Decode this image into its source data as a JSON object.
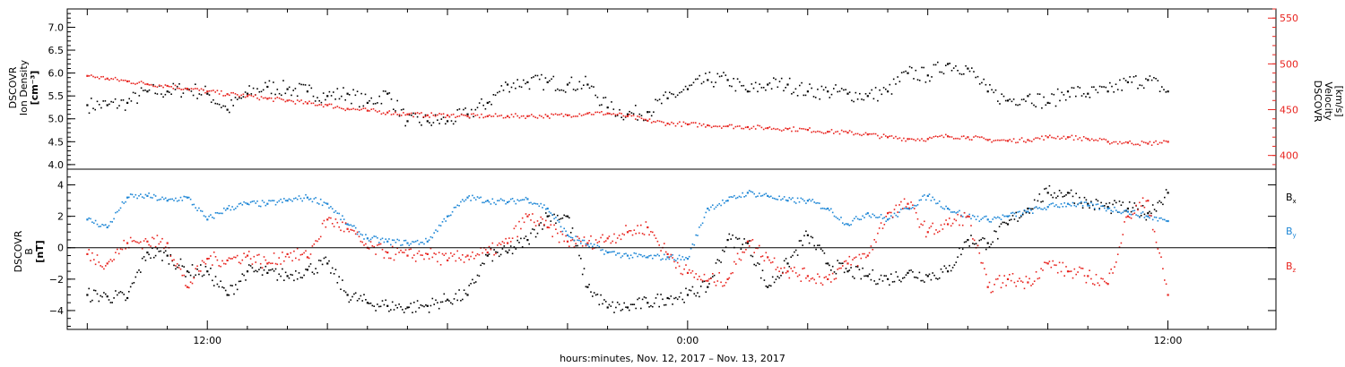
{
  "chart_data": [
    {
      "type": "scatter",
      "panel": "top",
      "ylabel_lines": [
        "DSCOVR",
        "Ion Density",
        "[cm⁻³]"
      ],
      "ylim": [
        3.9,
        7.4
      ],
      "yticks": [
        4.0,
        4.5,
        5.0,
        5.5,
        6.0,
        6.5,
        7.0
      ],
      "ytick_labels": [
        "4.0",
        "4.5",
        "5.0",
        "5.5",
        "6.0",
        "6.5",
        "7.0"
      ],
      "y2label_lines": [
        "DSCOVR",
        "Velocity",
        "[km/s]"
      ],
      "y2lim": [
        385,
        560
      ],
      "y2ticks": [
        400,
        450,
        500,
        550
      ],
      "y2tick_labels": [
        "400",
        "450",
        "500",
        "550"
      ],
      "color_left": "#000000",
      "color_right": "#e8241f",
      "series": [
        {
          "color": "#000000",
          "axis": "left",
          "x": [
            9.0,
            9.5,
            10.0,
            10.5,
            11.0,
            11.5,
            12.0,
            12.5,
            13.0,
            13.5,
            14.0,
            14.5,
            15.0,
            15.5,
            16.0,
            16.5,
            17.0,
            17.5,
            18.0,
            18.5,
            19.0,
            19.5,
            20.0,
            20.5,
            21.0,
            21.5,
            22.0,
            22.5,
            23.0,
            23.5,
            24.0,
            24.5,
            25.0,
            25.5,
            26.0,
            26.5,
            27.0,
            27.5,
            28.0,
            28.5,
            29.0,
            29.5,
            30.0,
            30.5,
            31.0,
            31.5,
            32.0,
            32.5,
            33.0,
            33.5,
            34.0,
            34.5,
            35.0,
            35.5,
            36.0
          ],
          "y": [
            5.3,
            5.3,
            5.35,
            5.6,
            5.6,
            5.65,
            5.55,
            5.2,
            5.55,
            5.7,
            5.65,
            5.6,
            5.5,
            5.55,
            5.35,
            5.55,
            4.95,
            4.95,
            4.95,
            5.1,
            5.35,
            5.75,
            5.8,
            5.8,
            5.75,
            5.75,
            5.25,
            5.1,
            5.15,
            5.45,
            5.65,
            5.85,
            5.85,
            5.6,
            5.75,
            5.75,
            5.6,
            5.6,
            5.55,
            5.5,
            5.6,
            6.0,
            5.95,
            6.2,
            6.1,
            5.6,
            5.4,
            5.5,
            5.35,
            5.6,
            5.55,
            5.6,
            5.8,
            5.85,
            5.6
          ]
        },
        {
          "color": "#e8241f",
          "axis": "right",
          "x": [
            9.0,
            9.5,
            10.0,
            10.5,
            11.0,
            11.5,
            12.0,
            12.5,
            13.0,
            13.5,
            14.0,
            14.5,
            15.0,
            15.5,
            16.0,
            16.5,
            17.0,
            17.5,
            18.0,
            18.5,
            19.0,
            19.5,
            20.0,
            20.5,
            21.0,
            21.5,
            22.0,
            22.5,
            23.0,
            23.5,
            24.0,
            24.5,
            25.0,
            25.5,
            26.0,
            26.5,
            27.0,
            27.5,
            28.0,
            28.5,
            29.0,
            29.5,
            30.0,
            30.5,
            31.0,
            31.5,
            32.0,
            32.5,
            33.0,
            33.5,
            34.0,
            34.5,
            35.0,
            35.5,
            36.0
          ],
          "y": [
            487,
            484,
            481,
            478,
            476,
            473,
            470,
            467,
            465,
            462,
            460,
            457,
            455,
            451,
            449,
            447,
            445,
            444,
            444,
            443,
            443,
            443,
            443,
            443,
            444,
            446,
            446,
            443,
            438,
            435,
            434,
            433,
            432,
            431,
            430,
            429,
            428,
            426,
            425,
            423,
            420,
            418,
            418,
            421,
            420,
            417,
            416,
            417,
            420,
            420,
            418,
            415,
            414,
            413,
            415
          ]
        }
      ]
    },
    {
      "type": "scatter",
      "panel": "bottom",
      "ylabel_lines": [
        "DSCOVR",
        "B",
        "[nT]"
      ],
      "ylim": [
        -5.2,
        5.0
      ],
      "yticks": [
        -4,
        -2,
        0,
        2,
        4
      ],
      "ytick_labels": [
        "−4",
        "−2",
        "0",
        "2",
        "4"
      ],
      "zero_line": true,
      "x": [
        9.0,
        9.5,
        10.0,
        10.5,
        11.0,
        11.5,
        12.0,
        12.5,
        13.0,
        13.5,
        14.0,
        14.5,
        15.0,
        15.5,
        16.0,
        16.5,
        17.0,
        17.5,
        18.0,
        18.5,
        19.0,
        19.5,
        20.0,
        20.5,
        21.0,
        21.5,
        22.0,
        22.5,
        23.0,
        23.5,
        24.0,
        24.5,
        25.0,
        25.5,
        26.0,
        26.5,
        27.0,
        27.5,
        28.0,
        28.5,
        29.0,
        29.5,
        30.0,
        30.5,
        31.0,
        31.5,
        32.0,
        32.5,
        33.0,
        33.5,
        34.0,
        34.5,
        35.0,
        35.5,
        36.0
      ],
      "series": [
        {
          "name": "Bx",
          "label_main": "B",
          "label_sub": "x",
          "color": "#000000",
          "values": [
            -3.0,
            -3.1,
            -3.2,
            -0.3,
            -0.5,
            -1.5,
            -1.5,
            -3.0,
            -1.5,
            -1.6,
            -1.8,
            -1.4,
            -1.0,
            -3.0,
            -3.5,
            -3.7,
            -3.8,
            -3.7,
            -3.3,
            -3.0,
            -0.5,
            -0.3,
            0.5,
            2.0,
            2.0,
            -2.5,
            -3.8,
            -3.8,
            -3.5,
            -3.2,
            -3.0,
            -2.5,
            0.5,
            0.3,
            -2.5,
            -1.0,
            0.8,
            -1.0,
            -1.5,
            -1.8,
            -2.0,
            -1.6,
            -1.8,
            -1.5,
            0.5,
            0.3,
            1.5,
            2.5,
            3.5,
            3.5,
            2.8,
            2.6,
            2.5,
            2.2,
            3.5
          ]
        },
        {
          "name": "By",
          "label_main": "B",
          "label_sub": "y",
          "color": "#1e87d6",
          "values": [
            1.8,
            1.3,
            3.2,
            3.3,
            3.0,
            3.2,
            1.8,
            2.5,
            2.8,
            2.8,
            3.0,
            3.2,
            2.8,
            1.5,
            0.6,
            0.4,
            0.3,
            0.4,
            2.0,
            3.2,
            3.0,
            2.9,
            3.1,
            2.5,
            0.8,
            0.2,
            -0.3,
            -0.5,
            -0.6,
            -0.6,
            -0.7,
            2.5,
            3.0,
            3.5,
            3.3,
            3.0,
            3.0,
            2.5,
            1.5,
            2.2,
            1.8,
            2.5,
            3.3,
            2.5,
            2.0,
            1.8,
            2.0,
            2.3,
            2.6,
            2.8,
            2.7,
            2.5,
            2.3,
            2.0,
            1.7
          ]
        },
        {
          "name": "Bz",
          "label_main": "B",
          "label_sub": "z",
          "color": "#e8241f",
          "values": [
            -0.4,
            -1.0,
            0.3,
            0.4,
            0.3,
            -2.5,
            -0.7,
            -0.8,
            -0.5,
            -1.0,
            -0.4,
            -0.6,
            1.8,
            1.2,
            0.0,
            -0.3,
            -0.5,
            -0.4,
            -0.8,
            -0.5,
            -0.3,
            0.3,
            2.0,
            1.3,
            0.4,
            0.3,
            0.6,
            1.0,
            1.3,
            -0.4,
            -1.6,
            -2.1,
            -2.0,
            0.4,
            -0.6,
            -1.5,
            -1.8,
            -2.0,
            -1.0,
            -0.5,
            2.2,
            2.8,
            1.0,
            1.5,
            2.0,
            -2.5,
            -2.0,
            -2.2,
            -1.0,
            -1.5,
            -1.8,
            -2.3,
            2.0,
            3.0,
            -3.0
          ]
        }
      ]
    }
  ],
  "x_axis": {
    "xlim": [
      8.5,
      38.7
    ],
    "major_ticks": [
      12,
      24,
      36
    ],
    "major_tick_labels": [
      "12:00",
      "0:00",
      "12:00"
    ],
    "xlabel": "hours:minutes, Nov. 12, 2017 – Nov. 13, 2017"
  }
}
